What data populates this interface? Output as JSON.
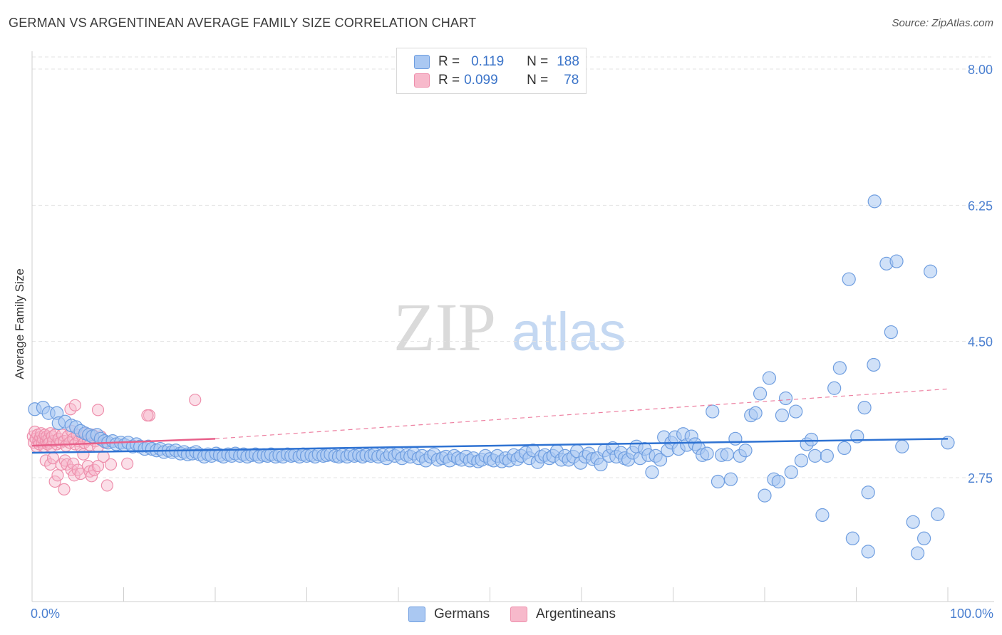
{
  "title": "GERMAN VS ARGENTINEAN AVERAGE FAMILY SIZE CORRELATION CHART",
  "source": "Source: ZipAtlas.com",
  "watermark": {
    "zip": "ZIP",
    "atlas": "atlas"
  },
  "colors": {
    "blue_fill": "#aac8f2",
    "blue_stroke": "#6f9ee0",
    "blue_line": "#2e72d2",
    "pink_fill": "#f7b9cb",
    "pink_stroke": "#ee8fac",
    "pink_line": "#e8608a",
    "grid": "#e3e3e3",
    "axis_text": "#4a7fd0"
  },
  "legend": {
    "rows": [
      {
        "r_label": "R =",
        "r_value": "0.119",
        "n_label": "N =",
        "n_value": "188"
      },
      {
        "r_label": "R =",
        "r_value": "0.099",
        "n_label": "N =",
        "n_value": "78"
      }
    ]
  },
  "bottom_legend": [
    "Germans",
    "Argentineans"
  ],
  "chart_data": {
    "type": "scatter",
    "title": "GERMAN VS ARGENTINEAN AVERAGE FAMILY SIZE CORRELATION CHART",
    "xlabel": "",
    "ylabel": "Average Family Size",
    "x_tick_labels": [
      "0.0%",
      "100.0%"
    ],
    "y_ticks": [
      2.75,
      4.5,
      6.25,
      8.0
    ],
    "y_tick_labels": [
      "2.75",
      "4.50",
      "6.25",
      "8.00"
    ],
    "xlim": [
      0,
      100
    ],
    "ylim": [
      1.0,
      8.2
    ],
    "series": [
      {
        "name": "Germans",
        "r": 0.119,
        "n": 188,
        "trend": {
          "x": [
            0,
            100
          ],
          "y": [
            3.07,
            3.25
          ]
        },
        "points": [
          [
            0.3,
            3.63
          ],
          [
            1.2,
            3.65
          ],
          [
            1.8,
            3.58
          ],
          [
            2.7,
            3.58
          ],
          [
            2.9,
            3.45
          ],
          [
            3.6,
            3.47
          ],
          [
            4.3,
            3.42
          ],
          [
            4.8,
            3.4
          ],
          [
            5.3,
            3.35
          ],
          [
            5.8,
            3.32
          ],
          [
            6.2,
            3.3
          ],
          [
            6.6,
            3.28
          ],
          [
            7.1,
            3.3
          ],
          [
            7.5,
            3.25
          ],
          [
            7.9,
            3.22
          ],
          [
            8.3,
            3.2
          ],
          [
            8.8,
            3.22
          ],
          [
            9.2,
            3.18
          ],
          [
            9.7,
            3.2
          ],
          [
            10.1,
            3.17
          ],
          [
            10.5,
            3.2
          ],
          [
            11.0,
            3.15
          ],
          [
            11.4,
            3.18
          ],
          [
            11.8,
            3.15
          ],
          [
            12.3,
            3.12
          ],
          [
            12.7,
            3.15
          ],
          [
            13.1,
            3.12
          ],
          [
            13.6,
            3.1
          ],
          [
            14.0,
            3.12
          ],
          [
            14.4,
            3.08
          ],
          [
            14.9,
            3.1
          ],
          [
            15.3,
            3.08
          ],
          [
            15.7,
            3.1
          ],
          [
            16.2,
            3.06
          ],
          [
            16.6,
            3.08
          ],
          [
            17.0,
            3.05
          ],
          [
            17.5,
            3.06
          ],
          [
            17.9,
            3.08
          ],
          [
            18.3,
            3.05
          ],
          [
            18.8,
            3.02
          ],
          [
            19.2,
            3.05
          ],
          [
            19.6,
            3.03
          ],
          [
            20.1,
            3.06
          ],
          [
            20.5,
            3.04
          ],
          [
            20.9,
            3.02
          ],
          [
            21.4,
            3.05
          ],
          [
            21.8,
            3.03
          ],
          [
            22.2,
            3.06
          ],
          [
            22.7,
            3.03
          ],
          [
            23.1,
            3.05
          ],
          [
            23.5,
            3.02
          ],
          [
            24.0,
            3.04
          ],
          [
            24.4,
            3.05
          ],
          [
            24.8,
            3.02
          ],
          [
            25.3,
            3.04
          ],
          [
            25.7,
            3.03
          ],
          [
            26.1,
            3.05
          ],
          [
            26.6,
            3.02
          ],
          [
            27.0,
            3.04
          ],
          [
            27.4,
            3.02
          ],
          [
            27.9,
            3.05
          ],
          [
            28.3,
            3.03
          ],
          [
            28.7,
            3.04
          ],
          [
            29.2,
            3.02
          ],
          [
            29.6,
            3.05
          ],
          [
            30.0,
            3.03
          ],
          [
            30.5,
            3.04
          ],
          [
            30.9,
            3.02
          ],
          [
            31.3,
            3.05
          ],
          [
            31.8,
            3.03
          ],
          [
            32.2,
            3.04
          ],
          [
            32.6,
            3.05
          ],
          [
            33.1,
            3.03
          ],
          [
            33.5,
            3.02
          ],
          [
            33.9,
            3.04
          ],
          [
            34.4,
            3.02
          ],
          [
            34.8,
            3.05
          ],
          [
            35.2,
            3.03
          ],
          [
            35.7,
            3.04
          ],
          [
            36.1,
            3.02
          ],
          [
            36.5,
            3.04
          ],
          [
            37.0,
            3.03
          ],
          [
            37.4,
            3.05
          ],
          [
            37.8,
            3.02
          ],
          [
            38.3,
            3.04
          ],
          [
            38.7,
            3.0
          ],
          [
            39.1,
            3.05
          ],
          [
            39.6,
            3.03
          ],
          [
            40.0,
            3.06
          ],
          [
            40.4,
            3.0
          ],
          [
            40.9,
            3.04
          ],
          [
            41.3,
            3.02
          ],
          [
            41.7,
            3.06
          ],
          [
            42.2,
            3.0
          ],
          [
            42.6,
            3.03
          ],
          [
            43.0,
            2.97
          ],
          [
            43.5,
            3.02
          ],
          [
            43.9,
            3.05
          ],
          [
            44.3,
            2.98
          ],
          [
            44.8,
            3.0
          ],
          [
            45.2,
            3.02
          ],
          [
            45.6,
            2.97
          ],
          [
            46.1,
            3.03
          ],
          [
            46.5,
            3.0
          ],
          [
            46.9,
            2.98
          ],
          [
            47.4,
            3.02
          ],
          [
            47.8,
            2.97
          ],
          [
            48.2,
            3.0
          ],
          [
            48.7,
            2.96
          ],
          [
            49.1,
            2.98
          ],
          [
            49.5,
            3.03
          ],
          [
            50.0,
            2.99
          ],
          [
            50.4,
            2.97
          ],
          [
            50.8,
            3.03
          ],
          [
            51.3,
            2.96
          ],
          [
            51.7,
            3.0
          ],
          [
            52.1,
            2.97
          ],
          [
            52.6,
            3.04
          ],
          [
            53.0,
            2.99
          ],
          [
            53.4,
            3.03
          ],
          [
            53.9,
            3.07
          ],
          [
            54.3,
            3.0
          ],
          [
            54.7,
            3.1
          ],
          [
            55.2,
            2.95
          ],
          [
            55.6,
            3.02
          ],
          [
            56.0,
            3.04
          ],
          [
            56.5,
            3.0
          ],
          [
            56.9,
            3.03
          ],
          [
            57.3,
            3.09
          ],
          [
            57.8,
            2.98
          ],
          [
            58.2,
            3.03
          ],
          [
            58.6,
            2.98
          ],
          [
            59.1,
            3.02
          ],
          [
            59.5,
            3.09
          ],
          [
            59.9,
            2.94
          ],
          [
            60.4,
            3.02
          ],
          [
            60.8,
            3.06
          ],
          [
            61.2,
            2.99
          ],
          [
            61.7,
            3.0
          ],
          [
            62.1,
            2.92
          ],
          [
            62.5,
            3.1
          ],
          [
            63.0,
            3.03
          ],
          [
            63.4,
            3.13
          ],
          [
            63.8,
            3.02
          ],
          [
            64.3,
            3.07
          ],
          [
            64.7,
            3.0
          ],
          [
            65.1,
            2.98
          ],
          [
            65.6,
            3.07
          ],
          [
            66.0,
            3.15
          ],
          [
            66.4,
            3.0
          ],
          [
            66.9,
            3.12
          ],
          [
            67.3,
            3.04
          ],
          [
            67.7,
            2.82
          ],
          [
            68.1,
            3.03
          ],
          [
            68.6,
            2.98
          ],
          [
            69.0,
            3.27
          ],
          [
            69.4,
            3.1
          ],
          [
            69.8,
            3.2
          ],
          [
            70.2,
            3.27
          ],
          [
            70.6,
            3.12
          ],
          [
            71.1,
            3.31
          ],
          [
            71.5,
            3.17
          ],
          [
            72.0,
            3.28
          ],
          [
            72.4,
            3.18
          ],
          [
            72.8,
            3.13
          ],
          [
            73.2,
            3.04
          ],
          [
            73.7,
            3.06
          ],
          [
            74.3,
            3.6
          ],
          [
            74.9,
            2.7
          ],
          [
            75.3,
            3.04
          ],
          [
            75.9,
            3.05
          ],
          [
            76.3,
            2.73
          ],
          [
            76.8,
            3.25
          ],
          [
            77.3,
            3.03
          ],
          [
            77.9,
            3.1
          ],
          [
            78.5,
            3.55
          ],
          [
            79.0,
            3.58
          ],
          [
            79.5,
            3.83
          ],
          [
            80.0,
            2.52
          ],
          [
            80.5,
            4.03
          ],
          [
            81.0,
            2.73
          ],
          [
            81.5,
            2.7
          ],
          [
            81.9,
            3.55
          ],
          [
            82.3,
            3.77
          ],
          [
            82.9,
            2.82
          ],
          [
            83.4,
            3.6
          ],
          [
            84.0,
            2.97
          ],
          [
            84.6,
            3.18
          ],
          [
            85.1,
            3.24
          ],
          [
            85.5,
            3.03
          ],
          [
            86.3,
            2.27
          ],
          [
            86.8,
            3.03
          ],
          [
            87.6,
            3.9
          ],
          [
            88.2,
            4.16
          ],
          [
            88.7,
            3.13
          ],
          [
            89.2,
            5.3
          ],
          [
            89.6,
            1.97
          ],
          [
            90.1,
            3.28
          ],
          [
            90.9,
            3.65
          ],
          [
            91.3,
            1.8
          ],
          [
            91.3,
            2.56
          ],
          [
            91.9,
            4.2
          ],
          [
            93.3,
            5.5
          ],
          [
            93.8,
            4.62
          ],
          [
            94.4,
            5.53
          ],
          [
            95.0,
            3.15
          ],
          [
            96.2,
            2.18
          ],
          [
            96.7,
            1.78
          ],
          [
            97.4,
            1.97
          ],
          [
            98.1,
            5.4
          ],
          [
            98.9,
            2.28
          ],
          [
            92.0,
            6.3
          ],
          [
            100.0,
            3.2
          ]
        ]
      },
      {
        "name": "Argentineans",
        "r": 0.099,
        "n": 78,
        "trend": {
          "x": [
            0,
            20
          ],
          "y": [
            3.16,
            3.25
          ]
        },
        "trend_ext": {
          "x": [
            20,
            100
          ],
          "y": [
            3.25,
            3.89
          ]
        },
        "points": [
          [
            0.1,
            3.28
          ],
          [
            0.2,
            3.2
          ],
          [
            0.3,
            3.34
          ],
          [
            0.4,
            3.25
          ],
          [
            0.5,
            3.15
          ],
          [
            0.6,
            3.3
          ],
          [
            0.7,
            3.22
          ],
          [
            0.8,
            3.18
          ],
          [
            0.9,
            3.27
          ],
          [
            1.0,
            3.32
          ],
          [
            1.1,
            3.2
          ],
          [
            1.2,
            3.25
          ],
          [
            1.3,
            3.15
          ],
          [
            1.4,
            3.3
          ],
          [
            1.5,
            3.22
          ],
          [
            1.6,
            3.28
          ],
          [
            1.7,
            3.18
          ],
          [
            1.8,
            3.25
          ],
          [
            1.9,
            3.2
          ],
          [
            2.0,
            3.32
          ],
          [
            2.1,
            3.15
          ],
          [
            2.2,
            3.28
          ],
          [
            2.3,
            3.22
          ],
          [
            2.5,
            3.3
          ],
          [
            2.7,
            3.18
          ],
          [
            2.9,
            3.25
          ],
          [
            3.1,
            3.2
          ],
          [
            3.3,
            3.3
          ],
          [
            3.5,
            3.22
          ],
          [
            3.7,
            3.16
          ],
          [
            3.9,
            3.28
          ],
          [
            4.1,
            3.2
          ],
          [
            4.3,
            3.35
          ],
          [
            4.5,
            3.25
          ],
          [
            4.7,
            3.18
          ],
          [
            4.9,
            3.3
          ],
          [
            5.1,
            3.22
          ],
          [
            5.3,
            3.15
          ],
          [
            5.5,
            3.28
          ],
          [
            5.7,
            3.2
          ],
          [
            5.9,
            3.32
          ],
          [
            6.1,
            3.24
          ],
          [
            6.3,
            3.17
          ],
          [
            6.6,
            3.3
          ],
          [
            6.9,
            3.22
          ],
          [
            7.2,
            3.15
          ],
          [
            7.5,
            3.28
          ],
          [
            8.0,
            3.2
          ],
          [
            1.5,
            2.97
          ],
          [
            2.0,
            2.92
          ],
          [
            2.3,
            3.0
          ],
          [
            2.5,
            2.7
          ],
          [
            2.8,
            2.78
          ],
          [
            3.2,
            2.92
          ],
          [
            3.5,
            2.6
          ],
          [
            3.6,
            2.97
          ],
          [
            3.8,
            2.92
          ],
          [
            4.3,
            2.85
          ],
          [
            4.5,
            2.93
          ],
          [
            4.6,
            2.78
          ],
          [
            5.0,
            2.85
          ],
          [
            5.3,
            2.8
          ],
          [
            5.6,
            3.05
          ],
          [
            6.1,
            2.9
          ],
          [
            6.3,
            2.83
          ],
          [
            6.5,
            2.77
          ],
          [
            6.8,
            2.85
          ],
          [
            7.2,
            2.9
          ],
          [
            7.8,
            3.02
          ],
          [
            8.2,
            2.65
          ],
          [
            8.6,
            2.92
          ],
          [
            10.4,
            2.93
          ],
          [
            4.2,
            3.63
          ],
          [
            4.7,
            3.68
          ],
          [
            7.2,
            3.62
          ],
          [
            12.8,
            3.55
          ],
          [
            12.6,
            3.55
          ],
          [
            17.8,
            3.75
          ]
        ]
      }
    ]
  }
}
